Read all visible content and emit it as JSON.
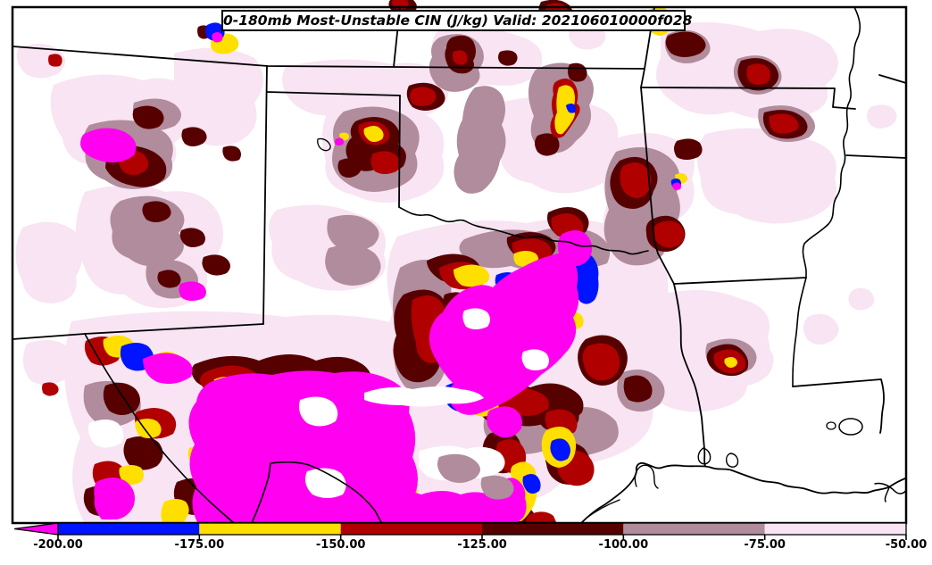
{
  "title_box": {
    "text": "0-180mb Most-Unstable CIN (J/kg) Valid: 202106010000f028"
  },
  "palette": {
    "background": "#FFFFFF",
    "border": "#000000",
    "white": "#FFFFFF",
    "magenta": "#FF00F0",
    "blue": "#0014FF",
    "yellow": "#FFDF00",
    "red": "#B00000",
    "maroon": "#570000",
    "mauve": "#B08C9C",
    "pink": "#F8E4F2"
  },
  "colorbar": {
    "tick_labels": [
      "-200.00",
      "-175.00",
      "-150.00",
      "-125.00",
      "-100.00",
      "-75.00",
      "-50.00"
    ],
    "segments": [
      {
        "color": "blue",
        "range": "-200 to -175"
      },
      {
        "color": "yellow",
        "range": "-175 to -150"
      },
      {
        "color": "red",
        "range": "-150 to -125"
      },
      {
        "color": "maroon",
        "range": "-125 to -100"
      },
      {
        "color": "mauve",
        "range": "-100 to -75"
      },
      {
        "color": "pink",
        "range": "-75 to -50"
      }
    ],
    "arrow": {
      "color": "magenta",
      "meaning": "< -200"
    }
  },
  "chart_data": {
    "type": "filled-contour-map",
    "title": "0-180mb Most-Unstable CIN (J/kg) Valid: 202106010000f028",
    "field": "0-180mb Most-Unstable CIN",
    "units": "J/kg",
    "valid": "202106010000f028",
    "contour_levels": [
      -200,
      -175,
      -150,
      -125,
      -100,
      -75,
      -50
    ],
    "bins": [
      {
        "max": -200,
        "color_key": "magenta"
      },
      {
        "min": -200,
        "max": -175,
        "color_key": "blue"
      },
      {
        "min": -175,
        "max": -150,
        "color_key": "yellow"
      },
      {
        "min": -150,
        "max": -125,
        "color_key": "red"
      },
      {
        "min": -125,
        "max": -100,
        "color_key": "maroon"
      },
      {
        "min": -100,
        "max": -75,
        "color_key": "mauve"
      },
      {
        "min": -75,
        "max": -50,
        "color_key": "pink"
      }
    ],
    "legend_position": "bottom"
  }
}
